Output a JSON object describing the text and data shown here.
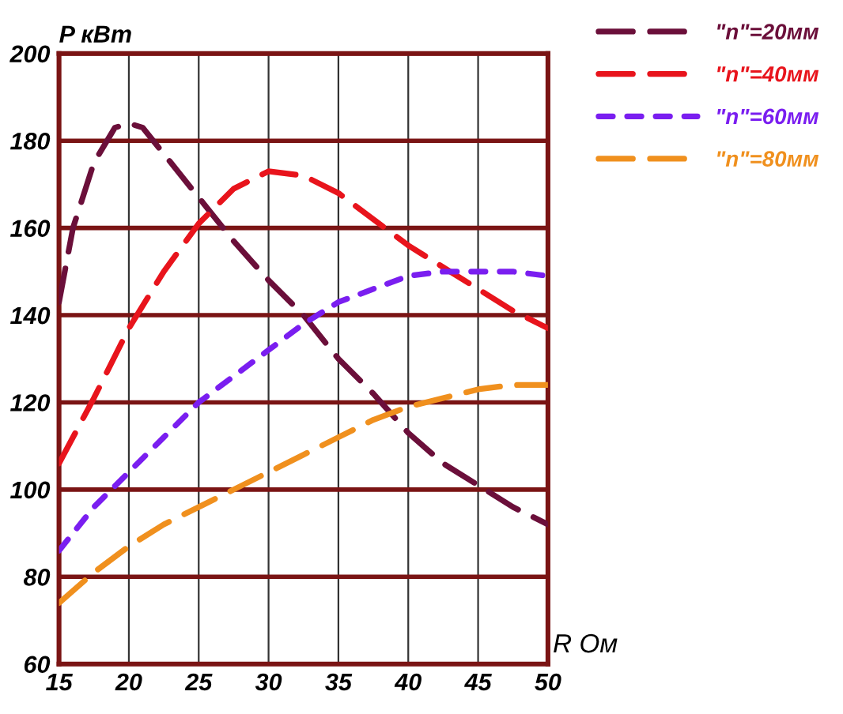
{
  "chart_data": {
    "type": "line",
    "xlabel": "R Ом",
    "ylabel": "P кВт",
    "xlim": [
      15,
      50
    ],
    "xticks": [
      15,
      20,
      25,
      30,
      35,
      40,
      45,
      50
    ],
    "ylim": [
      60,
      200
    ],
    "yticks": [
      60,
      80,
      100,
      120,
      140,
      160,
      180,
      200
    ],
    "grid": true,
    "legend": "top right",
    "marker": "none",
    "series": [
      {
        "name": "\"n\"=20мм",
        "color": "#6b0f3a",
        "line_style": "dashed",
        "x": [
          15,
          16,
          17.5,
          19,
          20,
          21,
          22.5,
          25,
          27.5,
          30,
          32.5,
          35,
          37.5,
          40,
          42.5,
          45,
          47.5,
          50
        ],
        "values": [
          143,
          160,
          175,
          183,
          184,
          183,
          177,
          167,
          157,
          148,
          140,
          130,
          122,
          113,
          106,
          101,
          96,
          92
        ]
      },
      {
        "name": "\"n\"=40мм",
        "color": "#e8141c",
        "line_style": "dashed",
        "x": [
          15,
          17.5,
          20,
          22.5,
          25,
          27.5,
          30,
          32.5,
          35,
          37.5,
          40,
          42.5,
          45,
          47.5,
          50
        ],
        "values": [
          106,
          121,
          137,
          150,
          161,
          169,
          173,
          172,
          168,
          162,
          156,
          151,
          146,
          141,
          137
        ]
      },
      {
        "name": "\"n\"=60мм",
        "color": "#7a1ef0",
        "line_style": "dotted",
        "x": [
          15,
          17.5,
          20,
          22.5,
          25,
          27.5,
          30,
          32.5,
          35,
          37.5,
          40,
          42.5,
          45,
          47.5,
          50
        ],
        "values": [
          86,
          96,
          104,
          112,
          120,
          126,
          132,
          138,
          143,
          146,
          149,
          150,
          150,
          150,
          149
        ]
      },
      {
        "name": "\"n\"=80мм",
        "color": "#f0901e",
        "line_style": "dashed",
        "x": [
          15,
          17.5,
          20,
          22.5,
          25,
          27.5,
          30,
          32.5,
          35,
          37.5,
          40,
          42.5,
          45,
          47.5,
          50
        ],
        "values": [
          74,
          81,
          87,
          92,
          96,
          100,
          104,
          108,
          112,
          116,
          119,
          121,
          123,
          124,
          124
        ]
      }
    ]
  }
}
